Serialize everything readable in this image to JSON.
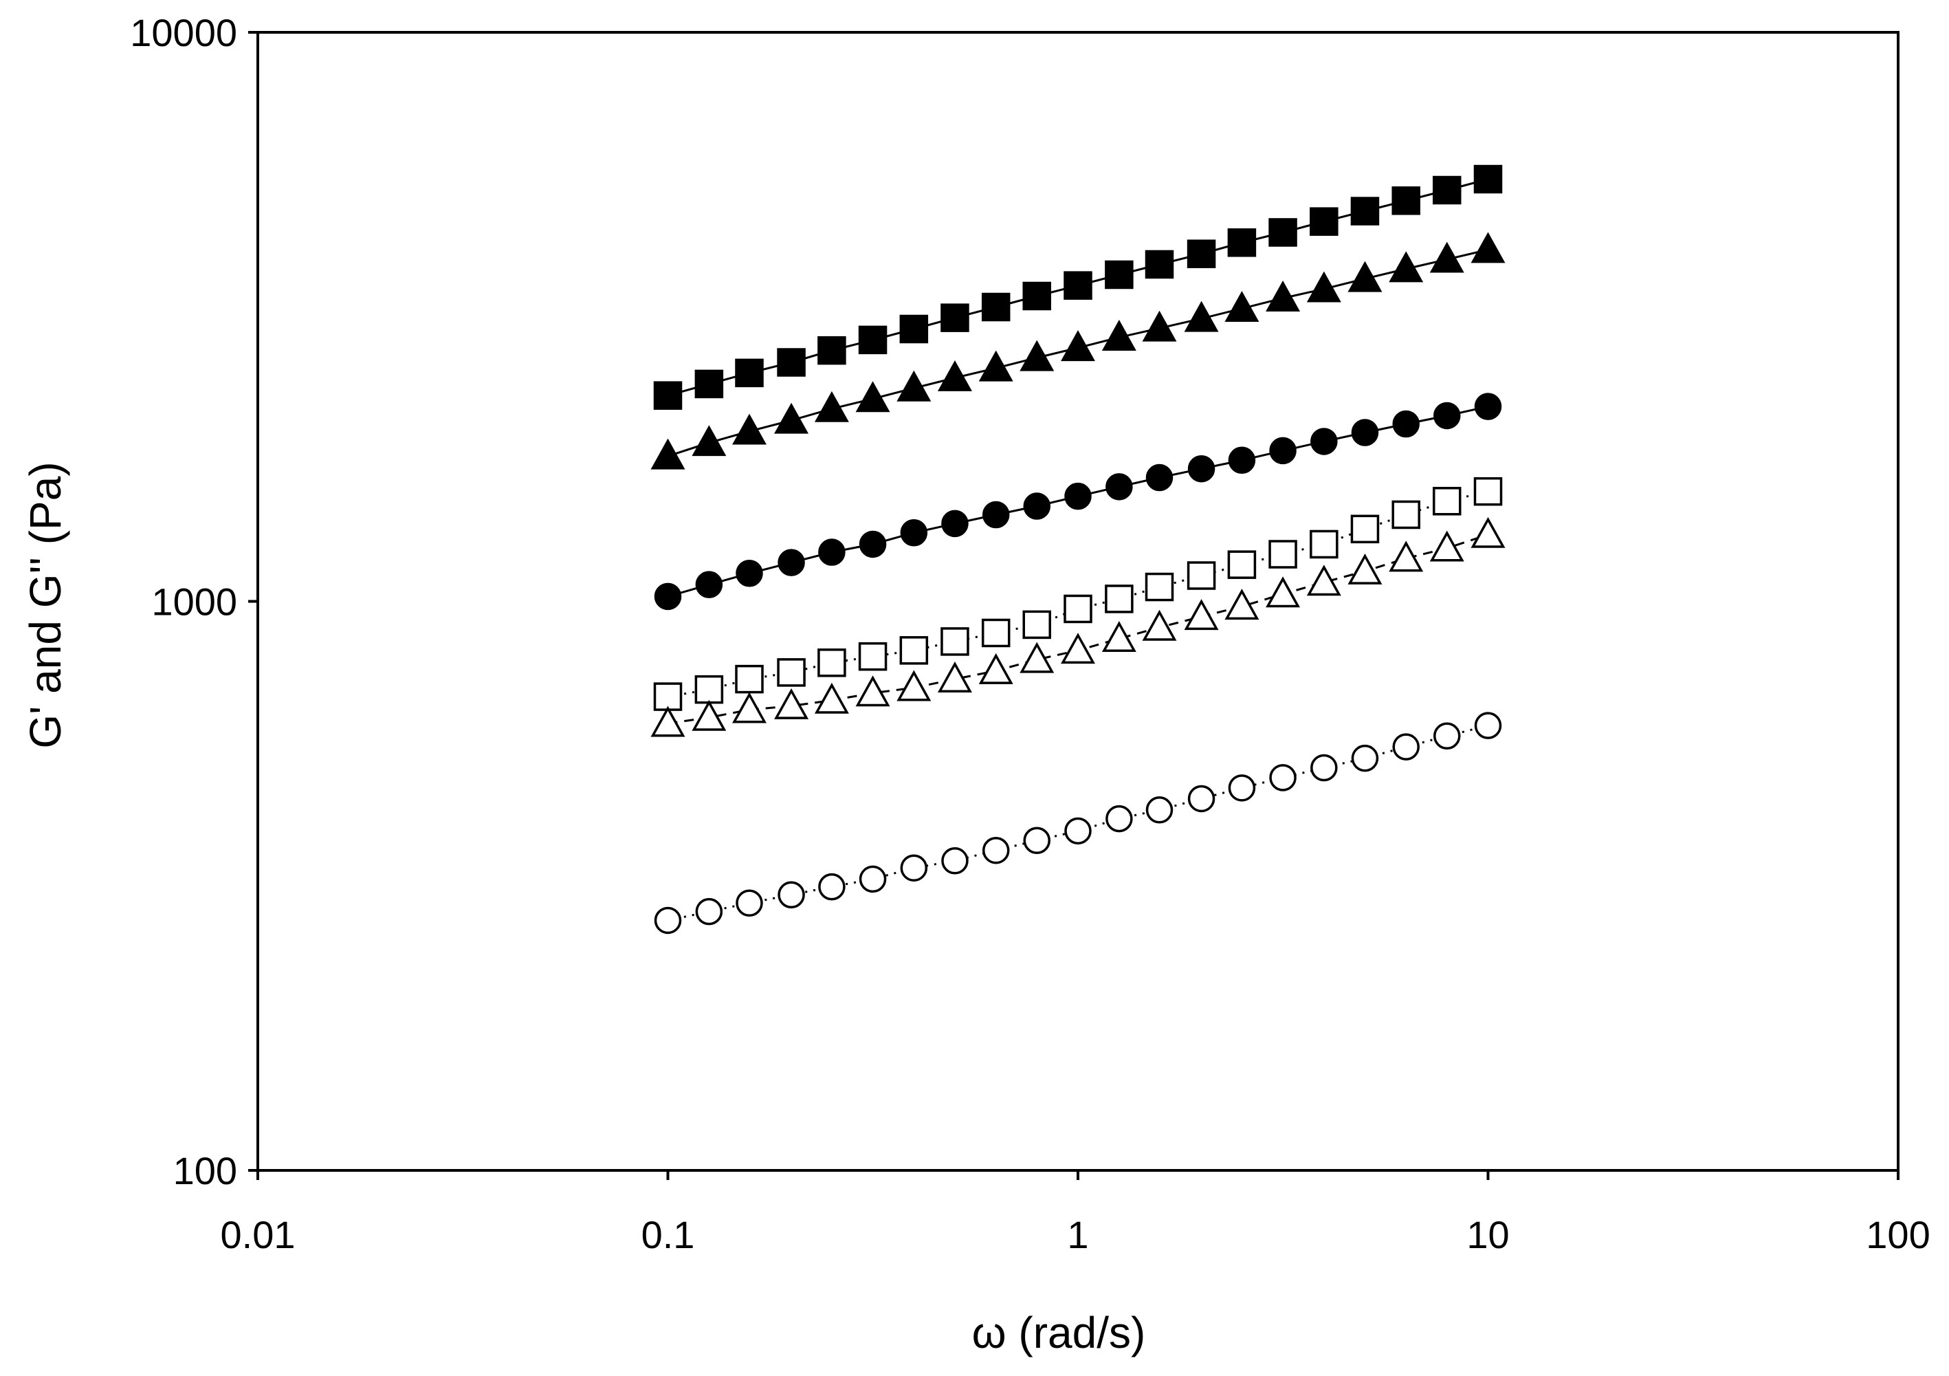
{
  "chart_data": {
    "type": "scatter",
    "xlabel": "ω  (rad/s)",
    "ylabel": "G' and G'' (Pa)",
    "x_scale": "log",
    "y_scale": "log",
    "xlim": [
      0.01,
      100
    ],
    "ylim": [
      100,
      10000
    ],
    "x_ticks": [
      {
        "value": 0.01,
        "label": "0.01"
      },
      {
        "value": 0.1,
        "label": "0.1"
      },
      {
        "value": 1,
        "label": "1"
      },
      {
        "value": 10,
        "label": "10"
      },
      {
        "value": 100,
        "label": "100"
      }
    ],
    "y_ticks": [
      {
        "value": 100,
        "label": "100"
      },
      {
        "value": 1000,
        "label": "1000"
      },
      {
        "value": 10000,
        "label": "10000"
      }
    ],
    "grid": false,
    "legend": "none",
    "x": [
      0.1,
      0.126,
      0.158,
      0.2,
      0.251,
      0.316,
      0.398,
      0.501,
      0.631,
      0.794,
      1,
      1.26,
      1.58,
      2,
      2.51,
      3.16,
      3.98,
      5.01,
      6.31,
      7.94,
      10
    ],
    "series": [
      {
        "marker": "filled-square",
        "line": "solid",
        "values": [
          2300,
          2410,
          2520,
          2630,
          2760,
          2880,
          3010,
          3150,
          3290,
          3440,
          3590,
          3750,
          3910,
          4080,
          4270,
          4450,
          4650,
          4850,
          5060,
          5280,
          5520
        ]
      },
      {
        "marker": "filled-triangle",
        "line": "solid",
        "values": [
          1800,
          1900,
          1990,
          2080,
          2180,
          2270,
          2370,
          2470,
          2570,
          2680,
          2790,
          2910,
          3020,
          3140,
          3270,
          3410,
          3540,
          3690,
          3840,
          3990,
          4150
        ]
      },
      {
        "marker": "filled-circle",
        "line": "solid",
        "values": [
          1020,
          1070,
          1120,
          1170,
          1220,
          1260,
          1320,
          1370,
          1420,
          1470,
          1530,
          1590,
          1650,
          1710,
          1770,
          1840,
          1910,
          1980,
          2050,
          2120,
          2200
        ]
      },
      {
        "marker": "open-square",
        "line": "dotted",
        "values": [
          680,
          700,
          730,
          750,
          780,
          800,
          820,
          850,
          880,
          910,
          970,
          1010,
          1060,
          1110,
          1160,
          1210,
          1260,
          1340,
          1420,
          1500,
          1560
        ]
      },
      {
        "marker": "open-triangle",
        "line": "dashed",
        "values": [
          610,
          625,
          645,
          655,
          670,
          690,
          705,
          730,
          755,
          790,
          820,
          860,
          900,
          940,
          980,
          1030,
          1080,
          1130,
          1190,
          1240,
          1310
        ]
      },
      {
        "marker": "open-circle",
        "line": "dotted",
        "values": [
          275,
          285,
          295,
          305,
          315,
          325,
          340,
          350,
          365,
          380,
          395,
          415,
          430,
          450,
          470,
          490,
          510,
          530,
          555,
          580,
          605
        ]
      }
    ]
  }
}
